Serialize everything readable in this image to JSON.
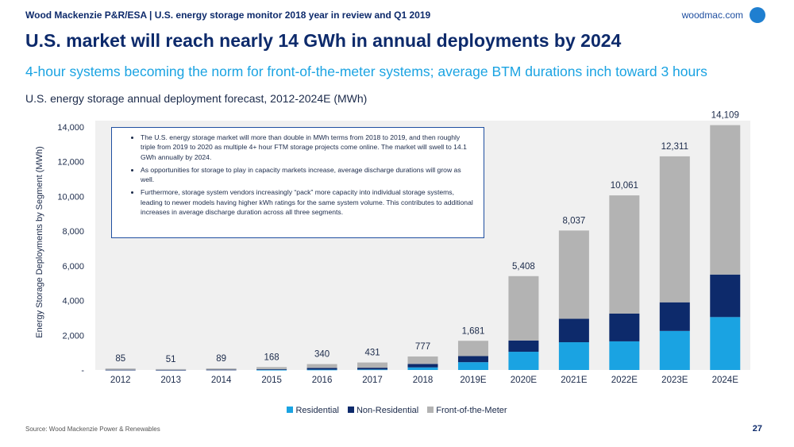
{
  "header": {
    "text": "Wood Mackenzie P&R/ESA | U.S. energy storage monitor 2018 year in review and Q1 2019",
    "brand": "woodmac.com"
  },
  "title": "U.S. market will reach nearly 14 GWh in annual deployments by 2024",
  "subtitle": "4-hour systems becoming the norm for front-of-the-meter systems; average BTM durations inch toward 3 hours",
  "annotation": {
    "bullets": [
      "The U.S. energy storage market will more than double in MWh terms from 2018 to 2019, and then roughly triple from 2019 to 2020 as multiple 4+ hour FTM storage projects come online. The market will swell to 14.1 GWh annually by 2024.",
      "As opportunities for storage to play in capacity markets increase, average discharge durations will grow as well.",
      "Furthermore, storage system vendors increasingly “pack” more capacity into individual storage systems, leading to newer models having higher kWh ratings for the same system volume. This contributes to additional increases in average discharge duration across all three segments."
    ]
  },
  "footer": {
    "source": "Source: Wood Mackenzie Power & Renewables",
    "page": "27"
  },
  "colors": {
    "residential": "#1aa3e2",
    "non_residential": "#0d2a6b",
    "ftm": "#b3b3b3",
    "plot_bg": "#f0f0f0"
  },
  "chart_data": {
    "type": "bar",
    "stacked": true,
    "title": "U.S. energy storage annual deployment forecast, 2012-2024E (MWh)",
    "ylabel": "Energy Storage Deployments by Segment (MWh)",
    "xlabel": "",
    "ylim": [
      0,
      14000
    ],
    "yticks": [
      0,
      2000,
      4000,
      6000,
      8000,
      10000,
      12000,
      14000
    ],
    "ytick_labels": [
      "-",
      "2,000",
      "4,000",
      "6,000",
      "8,000",
      "10,000",
      "12,000",
      "14,000"
    ],
    "categories": [
      "2012",
      "2013",
      "2014",
      "2015",
      "2016",
      "2017",
      "2018",
      "2019E",
      "2020E",
      "2021E",
      "2022E",
      "2023E",
      "2024E"
    ],
    "series": [
      {
        "name": "Residential",
        "values": [
          0,
          0,
          0,
          10,
          20,
          30,
          150,
          450,
          1050,
          1600,
          1650,
          2250,
          3050
        ]
      },
      {
        "name": "Non-Residential",
        "values": [
          15,
          10,
          20,
          40,
          100,
          100,
          200,
          350,
          650,
          1350,
          1600,
          1650,
          2450
        ]
      },
      {
        "name": "Front-of-the-Meter",
        "values": [
          70,
          41,
          69,
          118,
          220,
          301,
          427,
          881,
          3708,
          5087,
          6811,
          8411,
          8609
        ]
      }
    ],
    "totals": [
      85,
      51,
      89,
      168,
      340,
      431,
      777,
      1681,
      5408,
      8037,
      10061,
      12311,
      14109
    ],
    "total_labels": [
      "85",
      "51",
      "89",
      "168",
      "340",
      "431",
      "777",
      "1,681",
      "5,408",
      "8,037",
      "10,061",
      "12,311",
      "14,109"
    ],
    "legend_position": "bottom",
    "grid": false
  }
}
